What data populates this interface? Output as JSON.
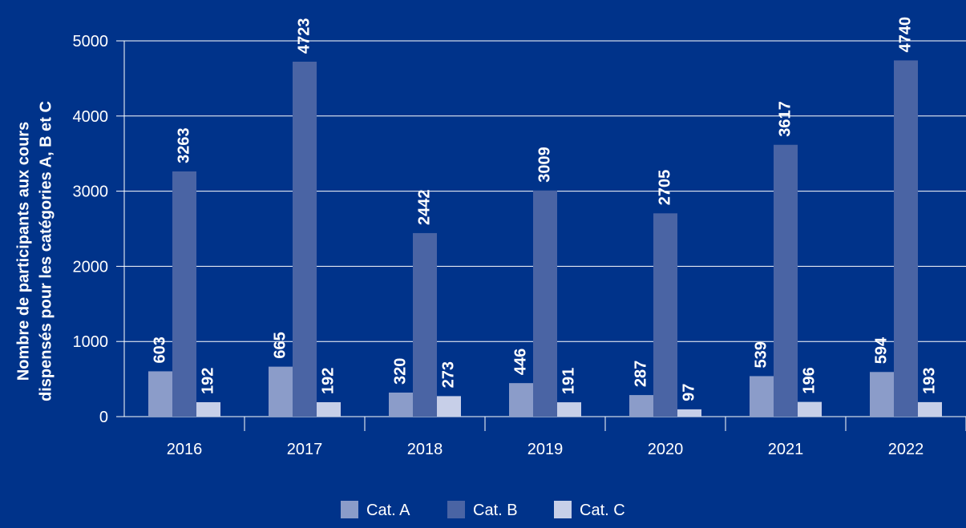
{
  "chart_data": {
    "type": "bar",
    "title": "",
    "xlabel": "",
    "ylabel_lines": [
      "Nombre de participants aux cours",
      "dispensés pour les catégories A, B et C"
    ],
    "ylim": [
      0,
      5000
    ],
    "yticks": [
      0,
      1000,
      2000,
      3000,
      4000,
      5000
    ],
    "grid": true,
    "legend_position": "bottom-center",
    "categories": [
      "2016",
      "2017",
      "2018",
      "2019",
      "2020",
      "2021",
      "2022"
    ],
    "series": [
      {
        "name": "Cat. A",
        "color": "#8b9cc9",
        "values": [
          603,
          665,
          320,
          446,
          287,
          539,
          594
        ]
      },
      {
        "name": "Cat. B",
        "color": "#4a64a4",
        "values": [
          3263,
          4723,
          2442,
          3009,
          2705,
          3617,
          4740
        ]
      },
      {
        "name": "Cat. C",
        "color": "#c7cfe8",
        "values": [
          192,
          192,
          273,
          191,
          97,
          196,
          193
        ]
      }
    ]
  },
  "colors": {
    "background": "#00338a",
    "gridline": "#ffffff",
    "text": "#ffffff"
  }
}
